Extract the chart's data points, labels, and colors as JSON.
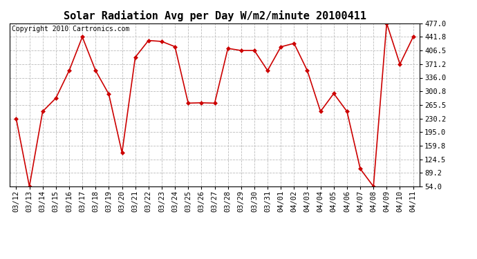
{
  "title": "Solar Radiation Avg per Day W/m2/minute 20100411",
  "copyright_text": "Copyright 2010 Cartronics.com",
  "dates": [
    "03/12",
    "03/13",
    "03/14",
    "03/15",
    "03/16",
    "03/17",
    "03/18",
    "03/19",
    "03/20",
    "03/21",
    "03/22",
    "03/23",
    "03/24",
    "03/25",
    "03/26",
    "03/27",
    "03/28",
    "03/29",
    "03/30",
    "03/31",
    "04/01",
    "04/02",
    "04/03",
    "04/04",
    "04/05",
    "04/06",
    "04/07",
    "04/08",
    "04/09",
    "04/10",
    "04/11"
  ],
  "values": [
    230.2,
    54.0,
    248.5,
    283.0,
    354.0,
    441.8,
    354.5,
    293.5,
    141.5,
    389.0,
    432.5,
    430.0,
    416.5,
    270.0,
    271.0,
    270.0,
    412.0,
    406.5,
    406.5,
    354.5,
    416.0,
    425.0,
    354.5,
    248.5,
    295.0,
    248.5,
    100.0,
    54.0,
    477.0,
    371.2,
    441.8
  ],
  "line_color": "#cc0000",
  "marker": "D",
  "marker_size": 3,
  "bg_color": "#ffffff",
  "grid_color": "#bbbbbb",
  "yticks": [
    54.0,
    89.2,
    124.5,
    159.8,
    195.0,
    230.2,
    265.5,
    300.8,
    336.0,
    371.2,
    406.5,
    441.8,
    477.0
  ],
  "ylim": [
    54.0,
    477.0
  ],
  "title_fontsize": 11,
  "tick_fontsize": 7.5,
  "copyright_fontsize": 7
}
